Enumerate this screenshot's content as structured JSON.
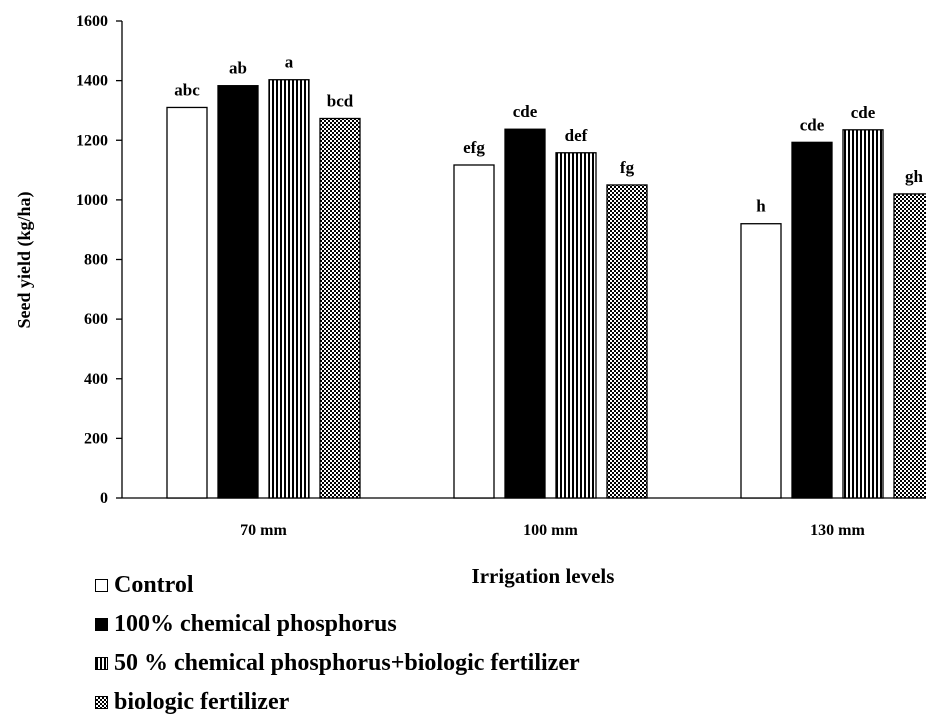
{
  "chart_data": {
    "type": "bar",
    "title": "",
    "xlabel": "Irrigation levels",
    "ylabel": "Seed yield (kg/ha)",
    "ylim": [
      0,
      1600
    ],
    "yticks": [
      "0",
      "200",
      "400",
      "600",
      "800",
      "1000",
      "1200",
      "1400",
      "1600"
    ],
    "categories": [
      "70 mm",
      "100 mm",
      "130 mm"
    ],
    "grid": false,
    "legend_position": "bottom-left",
    "series": [
      {
        "name": "Control",
        "fill": "white",
        "values": [
          1310,
          1117,
          920
        ],
        "labels": [
          "abc",
          "efg",
          "h"
        ]
      },
      {
        "name": "100% chemical phosphorus",
        "fill": "black",
        "values": [
          1383,
          1237,
          1193
        ],
        "labels": [
          "ab",
          "cde",
          "cde"
        ]
      },
      {
        "name": "50 % chemical phosphorus+biologic fertilizer",
        "fill": "vertical-stripes",
        "values": [
          1403,
          1158,
          1235
        ],
        "labels": [
          "a",
          "def",
          "cde"
        ]
      },
      {
        "name": "biologic fertilizer",
        "fill": "checker",
        "values": [
          1273,
          1050,
          1020
        ],
        "labels": [
          "bcd",
          "fg",
          "gh"
        ]
      }
    ]
  }
}
